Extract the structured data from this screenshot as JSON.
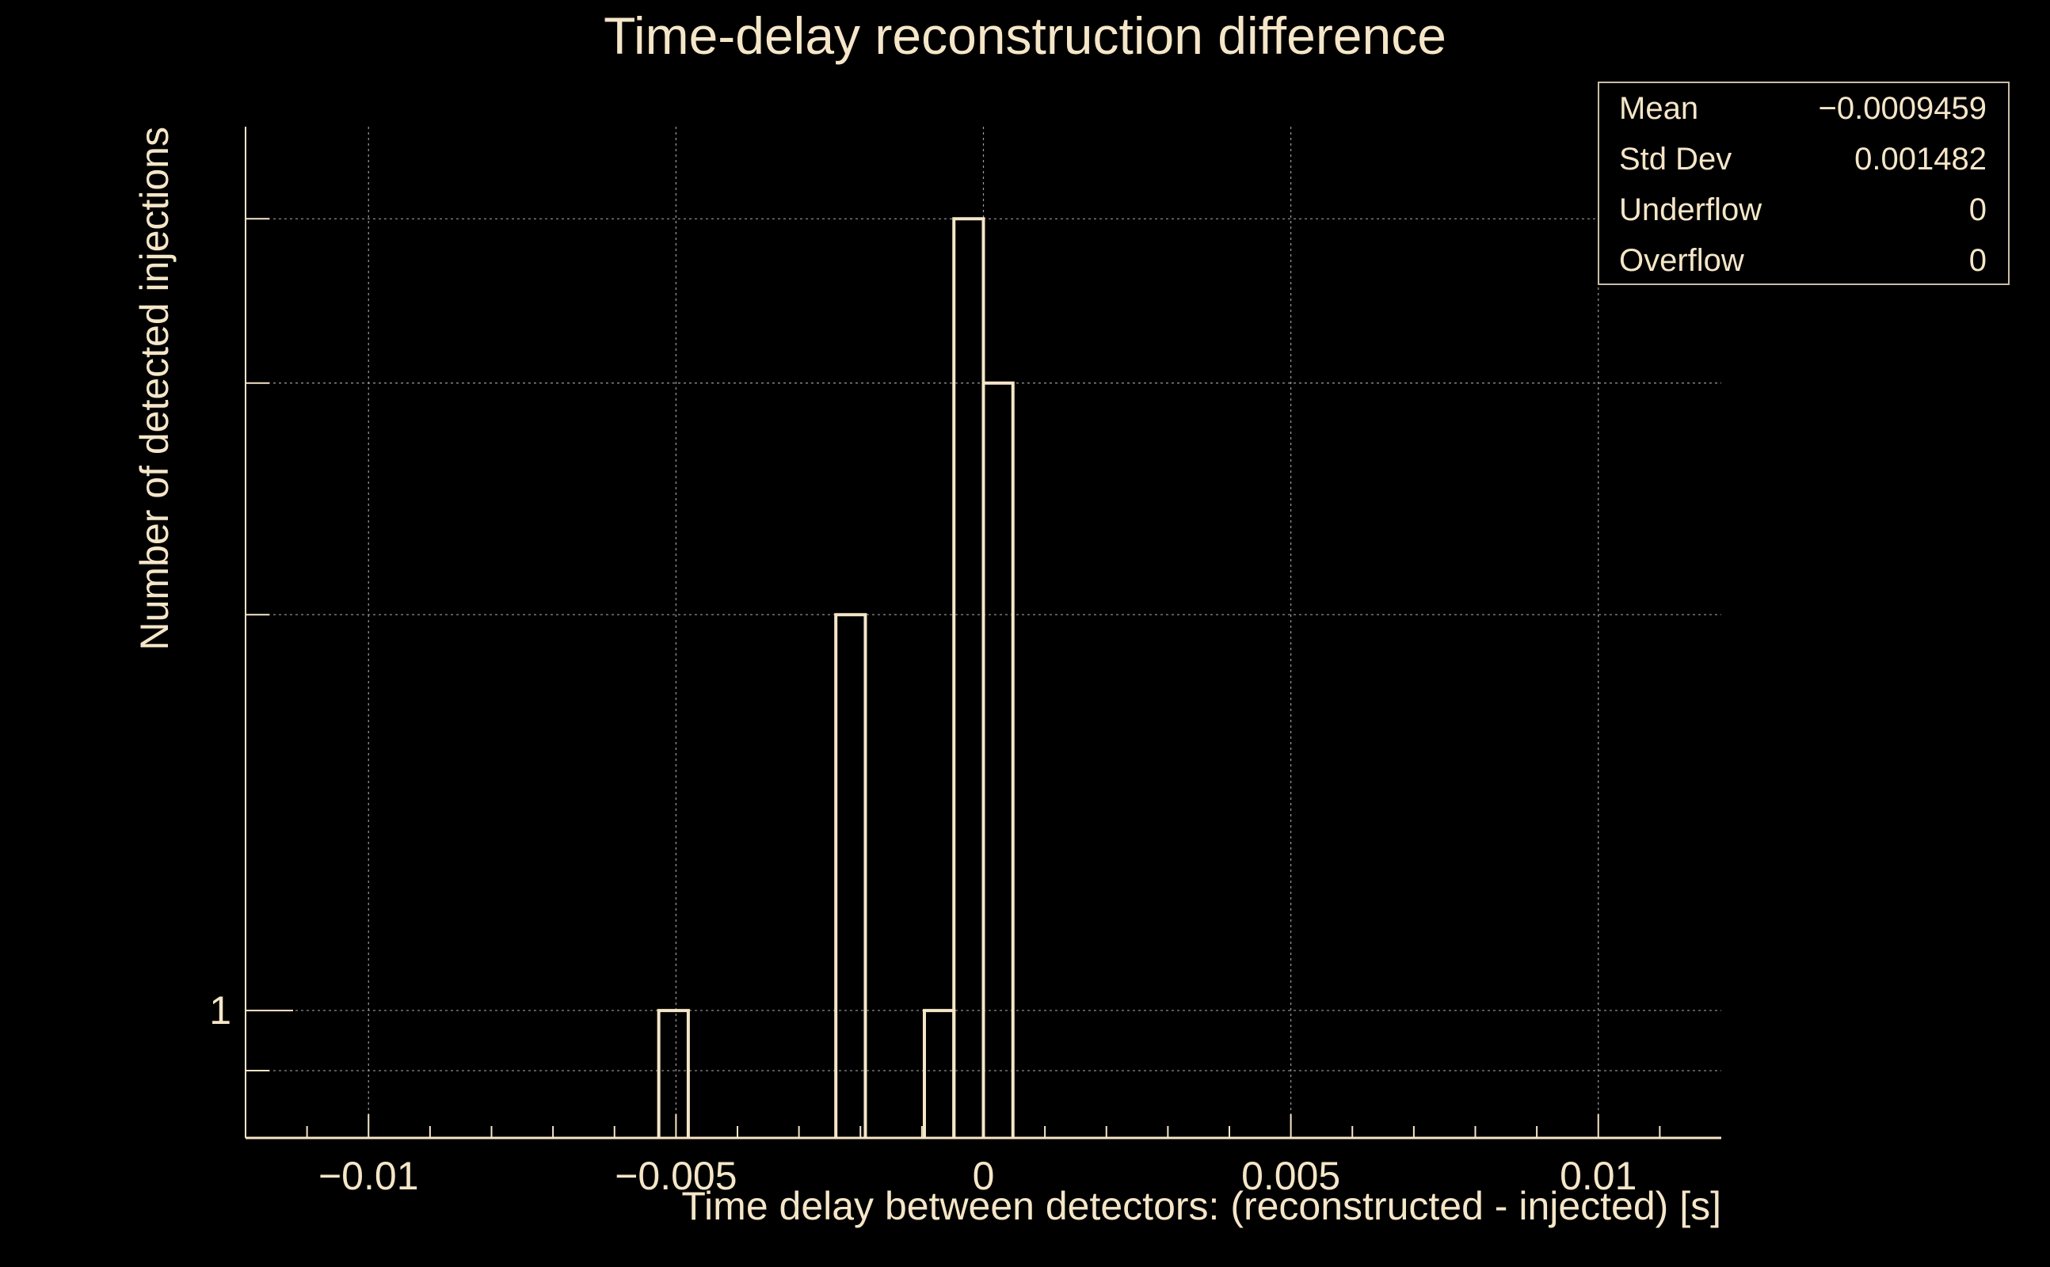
{
  "colors": {
    "background": "#000000",
    "foreground": "#f5e6c8",
    "grid": "#9a9a9a"
  },
  "chart_data": {
    "type": "bar",
    "style": "step-histogram",
    "title": "Time-delay reconstruction difference",
    "xlabel": "Time delay between detectors: (reconstructed - injected) [s]",
    "ylabel": "Number of detected injections",
    "xlim": [
      -0.012,
      0.012
    ],
    "ylim": [
      0.8,
      4.7
    ],
    "yscale": "log",
    "grid": true,
    "x_ticks": [
      {
        "value": -0.01,
        "label": "−0.01"
      },
      {
        "value": -0.005,
        "label": "−0.005"
      },
      {
        "value": 0,
        "label": "0"
      },
      {
        "value": 0.005,
        "label": "0.005"
      },
      {
        "value": 0.01,
        "label": "0.01"
      }
    ],
    "y_ticks": [
      {
        "value": 1,
        "label": "1"
      }
    ],
    "y_minor_ticks": [
      0.9,
      2,
      3,
      4
    ],
    "bin_width": 0.00048,
    "bins": [
      {
        "x_low": -0.00528,
        "x_high": -0.0048,
        "count": 1
      },
      {
        "x_low": -0.0024,
        "x_high": -0.00192,
        "count": 2
      },
      {
        "x_low": -0.00096,
        "x_high": -0.00048,
        "count": 1
      },
      {
        "x_low": -0.00048,
        "x_high": 0.0,
        "count": 4
      },
      {
        "x_low": 0.0,
        "x_high": 0.00048,
        "count": 3
      }
    ],
    "stats_box": {
      "position": "top-right",
      "rows": [
        {
          "label": "Mean",
          "value": "−0.0009459"
        },
        {
          "label": "Std Dev",
          "value": "0.001482"
        },
        {
          "label": "Underflow",
          "value": "0"
        },
        {
          "label": "Overflow",
          "value": "0"
        }
      ]
    }
  }
}
